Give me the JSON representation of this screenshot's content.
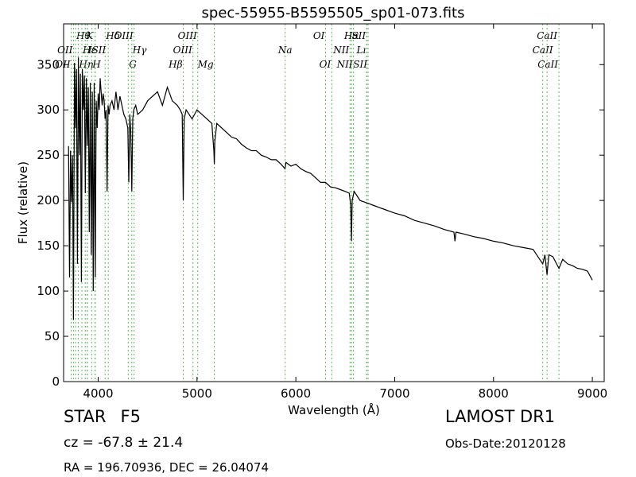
{
  "chart_data": {
    "type": "line",
    "title": "spec-55955-B5595505_sp01-073.fits",
    "xlabel": "Wavelength (Å)",
    "ylabel": "Flux (relative)",
    "xlim": [
      3650,
      9120
    ],
    "ylim": [
      0,
      395
    ],
    "xticks": [
      4000,
      5000,
      6000,
      7000,
      8000,
      9000
    ],
    "yticks": [
      0,
      50,
      100,
      150,
      200,
      250,
      300,
      350
    ],
    "grid": false,
    "legend": "none",
    "line_color": "#000000",
    "marker_color": "#5cb85c",
    "series": [
      {
        "x": [
          3700,
          3710,
          3720,
          3730,
          3740,
          3750,
          3760,
          3770,
          3780,
          3790,
          3800,
          3810,
          3820,
          3830,
          3840,
          3850,
          3860,
          3870,
          3880,
          3890,
          3900,
          3910,
          3920,
          3930,
          3940,
          3950,
          3960,
          3970,
          3980,
          3990,
          4000,
          4010,
          4020,
          4030,
          4040,
          4050,
          4060,
          4070,
          4080,
          4090,
          4100,
          4110,
          4120,
          4140,
          4160,
          4180,
          4200,
          4220,
          4240,
          4260,
          4280,
          4300,
          4310,
          4320,
          4330,
          4340,
          4350,
          4360,
          4380,
          4400,
          4450,
          4500,
          4550,
          4600,
          4650,
          4700,
          4750,
          4800,
          4830,
          4850,
          4861,
          4870,
          4890,
          4920,
          4950,
          5000,
          5050,
          5100,
          5150,
          5170,
          5175,
          5180,
          5200,
          5250,
          5300,
          5350,
          5400,
          5450,
          5500,
          5550,
          5600,
          5650,
          5700,
          5750,
          5800,
          5850,
          5890,
          5900,
          5950,
          6000,
          6050,
          6100,
          6150,
          6200,
          6250,
          6300,
          6350,
          6400,
          6450,
          6500,
          6540,
          6555,
          6563,
          6570,
          6590,
          6620,
          6650,
          6700,
          6750,
          6800,
          6850,
          6900,
          6950,
          7000,
          7100,
          7200,
          7300,
          7400,
          7500,
          7600,
          7610,
          7620,
          7700,
          7800,
          7900,
          8000,
          8100,
          8200,
          8300,
          8400,
          8498,
          8520,
          8542,
          8560,
          8600,
          8662,
          8700,
          8750,
          8800,
          8850,
          8900,
          8950,
          9000
        ],
        "values": [
          260,
          115,
          255,
          198,
          250,
          68,
          352,
          280,
          345,
          130,
          358,
          250,
          340,
          110,
          345,
          300,
          338,
          208,
          335,
          260,
          325,
          165,
          330,
          140,
          320,
          100,
          330,
          115,
          310,
          280,
          318,
          300,
          335,
          320,
          305,
          318,
          310,
          290,
          300,
          210,
          305,
          295,
          305,
          310,
          300,
          320,
          300,
          315,
          305,
          295,
          290,
          280,
          220,
          295,
          275,
          210,
          290,
          300,
          305,
          295,
          300,
          310,
          315,
          320,
          305,
          325,
          310,
          305,
          300,
          295,
          200,
          290,
          300,
          295,
          290,
          300,
          295,
          290,
          285,
          255,
          240,
          265,
          285,
          280,
          275,
          270,
          268,
          262,
          258,
          255,
          255,
          250,
          248,
          245,
          245,
          240,
          235,
          242,
          238,
          240,
          235,
          232,
          230,
          225,
          220,
          220,
          215,
          214,
          212,
          210,
          208,
          195,
          155,
          200,
          210,
          205,
          200,
          198,
          196,
          194,
          192,
          190,
          188,
          186,
          183,
          178,
          175,
          172,
          168,
          165,
          155,
          165,
          163,
          160,
          158,
          155,
          153,
          150,
          148,
          146,
          130,
          140,
          118,
          140,
          138,
          125,
          135,
          130,
          128,
          125,
          124,
          122,
          112
        ]
      }
    ],
    "line_markers": [
      {
        "x": 3727,
        "label": "OII",
        "row": 2,
        "align": "end"
      },
      {
        "x": 3750,
        "label": "OII",
        "row": 1,
        "align": "end"
      },
      {
        "x": 3771,
        "label": "Hθ",
        "row": 0,
        "align": "start"
      },
      {
        "x": 3798,
        "label": "Hη",
        "row": 2,
        "align": "start"
      },
      {
        "x": 3835,
        "label": "Hε",
        "row": 1,
        "align": "start"
      },
      {
        "x": 3869,
        "label": "K",
        "row": 0,
        "align": "start"
      },
      {
        "x": 3889,
        "label": "",
        "row": 0,
        "align": "start"
      },
      {
        "x": 3934,
        "label": "H",
        "row": 2,
        "align": "start"
      },
      {
        "x": 3968,
        "label": "",
        "row": 0,
        "align": "start"
      },
      {
        "x": 3970,
        "label": "",
        "row": 0,
        "align": "start"
      },
      {
        "x": 4070,
        "label": "Hδ",
        "row": 0,
        "align": "start"
      },
      {
        "x": 4102,
        "label": "",
        "row": 0,
        "align": "start"
      },
      {
        "x": 3890,
        "label": "ISII",
        "row": 1,
        "align": "start"
      },
      {
        "x": 4304,
        "label": "G",
        "row": 2,
        "align": "start"
      },
      {
        "x": 4340,
        "label": "Hγ",
        "row": 1,
        "align": "start"
      },
      {
        "x": 4363,
        "label": "OIII",
        "row": 0,
        "align": "end"
      },
      {
        "x": 4861,
        "label": "Hβ",
        "row": 2,
        "align": "end"
      },
      {
        "x": 4959,
        "label": "OIII",
        "row": 1,
        "align": "end"
      },
      {
        "x": 5007,
        "label": "OIII",
        "row": 0,
        "align": "end"
      },
      {
        "x": 5175,
        "label": "Mg",
        "row": 2,
        "align": "end"
      },
      {
        "x": 5892,
        "label": "Na",
        "row": 1,
        "align": "middle"
      },
      {
        "x": 6300,
        "label": "OI",
        "row": 0,
        "align": "end"
      },
      {
        "x": 6363,
        "label": "OI",
        "row": 2,
        "align": "end"
      },
      {
        "x": 6548,
        "label": "NII",
        "row": 1,
        "align": "end"
      },
      {
        "x": 6563,
        "label": "Hα",
        "row": 0,
        "align": "middle"
      },
      {
        "x": 6583,
        "label": "NII",
        "row": 2,
        "align": "end"
      },
      {
        "x": 6716,
        "label": "SII",
        "row": 0,
        "align": "end"
      },
      {
        "x": 6717,
        "label": "Lı",
        "row": 1,
        "align": "end"
      },
      {
        "x": 6731,
        "label": "SII",
        "row": 2,
        "align": "end"
      },
      {
        "x": 8498,
        "label": "CaII",
        "row": 1,
        "align": "middle"
      },
      {
        "x": 8542,
        "label": "CaII",
        "row": 0,
        "align": "middle"
      },
      {
        "x": 8662,
        "label": "CaII",
        "row": 2,
        "align": "end"
      }
    ]
  },
  "info": {
    "class_label": "STAR",
    "subclass_label": "F5",
    "redshift_text": "cz = -67.8 ± 21.4",
    "coords_text": "RA = 196.70936, DEC = 26.04074",
    "data_release": "LAMOST DR1",
    "obs_date": "Obs-Date:20120128"
  }
}
